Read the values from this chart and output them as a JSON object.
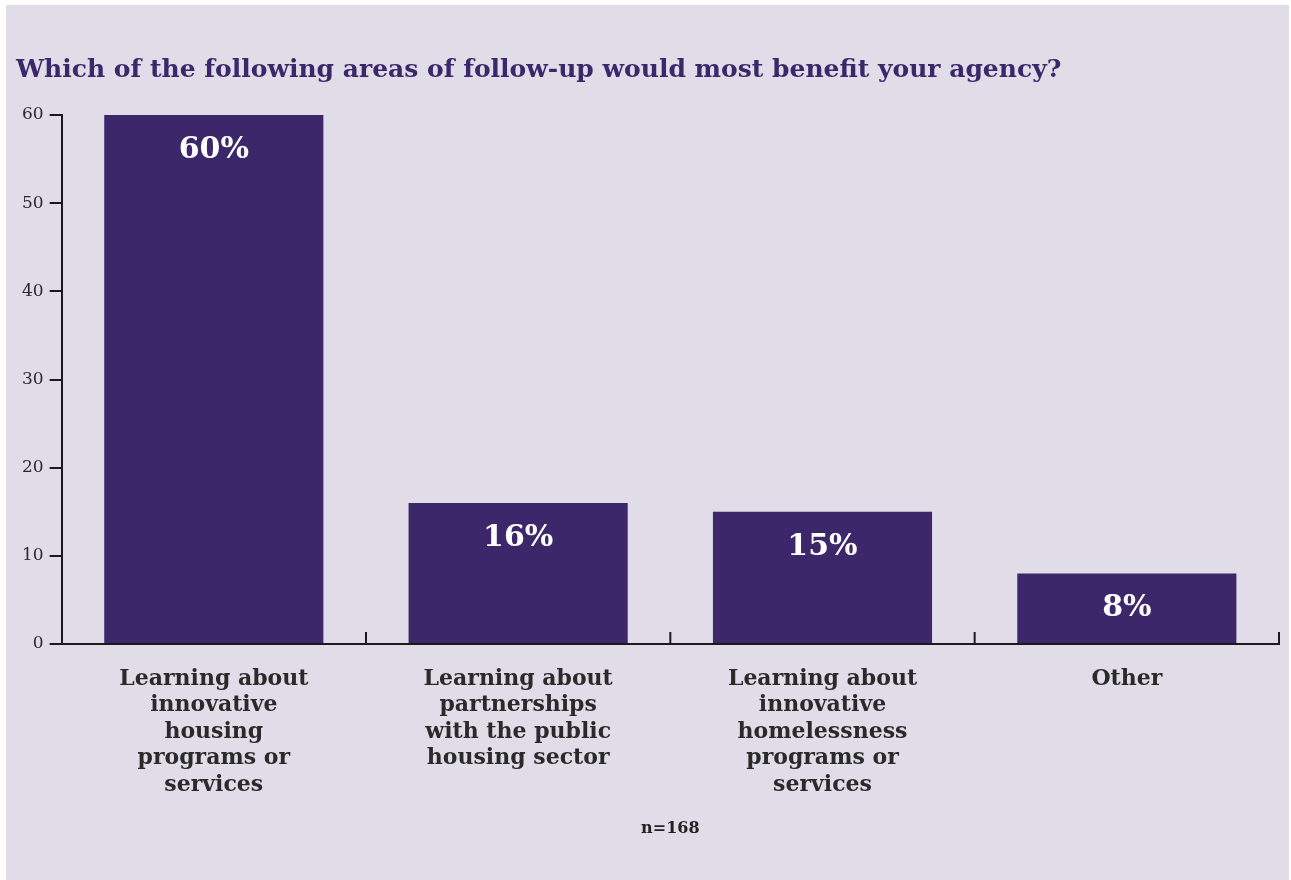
{
  "chart_data": {
    "type": "bar",
    "title": "Which of the following areas of follow-up would most benefit your agency?",
    "categories": [
      "Learning about innovative housing programs or services",
      "Learning about partnerships with the public housing sector",
      "Learning about innovative homelessness programs or services",
      "Other"
    ],
    "values": [
      60,
      16,
      15,
      8
    ],
    "color": "#3b2769",
    "value_labels": [
      "60%",
      "16%",
      "15%",
      "8%"
    ],
    "ylim": [
      0,
      60
    ],
    "yticks": [
      0,
      10,
      20,
      30,
      40,
      50,
      60
    ],
    "grid": false,
    "legend": false,
    "annotations": [
      "n=168"
    ]
  }
}
